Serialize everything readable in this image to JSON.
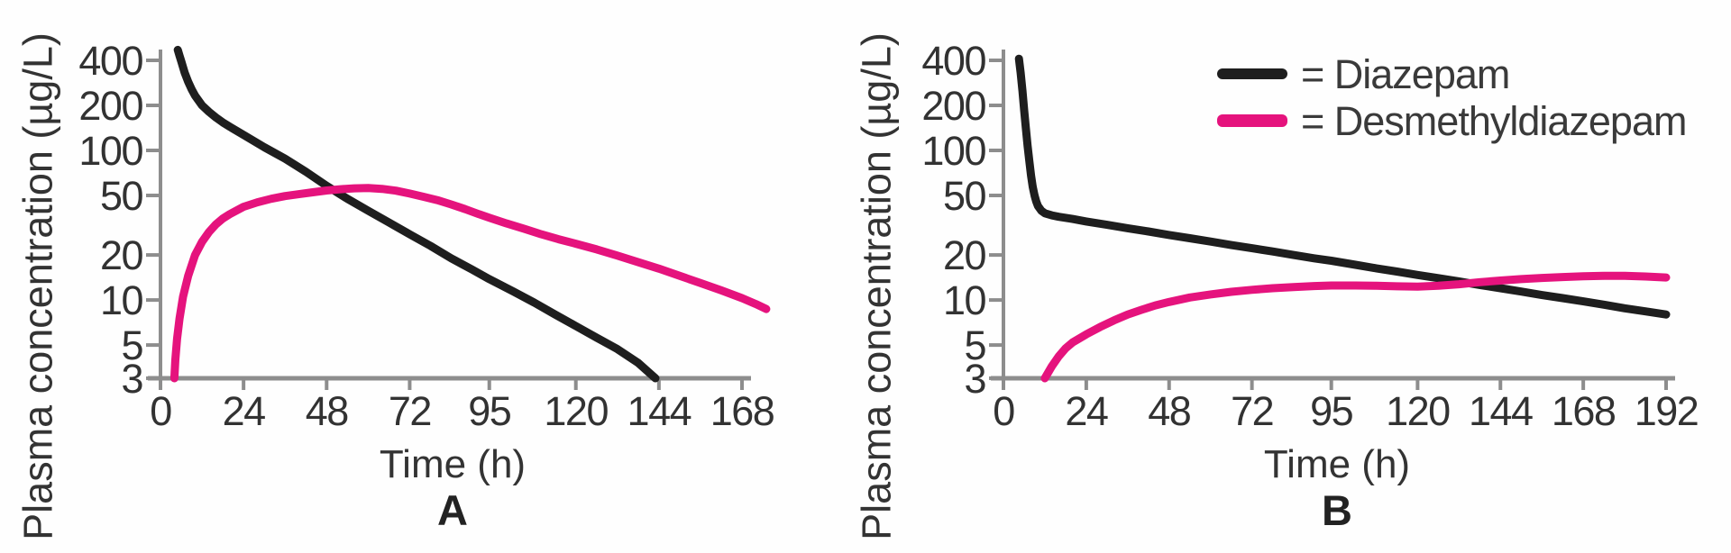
{
  "colors": {
    "diazepam": "#1e1e1e",
    "desmethyldiazepam": "#e5137d",
    "axis": "#8d8d8d",
    "text": "#333333"
  },
  "legend": {
    "items": [
      {
        "series": "diazepam",
        "label": "= Diazepam"
      },
      {
        "series": "desmethyldiazepam",
        "label": "= Desmethyldiazepam"
      }
    ],
    "position": "top-right"
  },
  "chart_data": [
    {
      "panel": "A",
      "caption": "A",
      "type": "line",
      "xlabel": "Time (h)",
      "ylabel": "Plasma concentration (µg/L)",
      "y_scale": "log",
      "ylim": [
        3,
        400
      ],
      "xlim": [
        0,
        175
      ],
      "y_ticks": [
        400,
        200,
        100,
        50,
        20,
        10,
        5,
        3
      ],
      "x_ticks": [
        0,
        24,
        48,
        72,
        95,
        120,
        144,
        168
      ],
      "grid": false,
      "series": [
        {
          "name": "Diazepam",
          "color_key": "diazepam",
          "points": [
            [
              5,
              470
            ],
            [
              5.5,
              430
            ],
            [
              6,
              395
            ],
            [
              7,
              330
            ],
            [
              8,
              288
            ],
            [
              9,
              256
            ],
            [
              10,
              232
            ],
            [
              12,
              200
            ],
            [
              14,
              181
            ],
            [
              16,
              166
            ],
            [
              18,
              154
            ],
            [
              20,
              144
            ],
            [
              24,
              127
            ],
            [
              30,
              105
            ],
            [
              36,
              88
            ],
            [
              42,
              72
            ],
            [
              48,
              58
            ],
            [
              54,
              47.5
            ],
            [
              60,
              39.5
            ],
            [
              66,
              33
            ],
            [
              72,
              27.5
            ],
            [
              78,
              23
            ],
            [
              84,
              19
            ],
            [
              90,
              16
            ],
            [
              95,
              13.8
            ],
            [
              102,
              11.4
            ],
            [
              108,
              9.6
            ],
            [
              114,
              8
            ],
            [
              120,
              6.7
            ],
            [
              126,
              5.6
            ],
            [
              132,
              4.7
            ],
            [
              138,
              3.8
            ],
            [
              143,
              3
            ]
          ]
        },
        {
          "name": "Desmethyldiazepam",
          "color_key": "desmethyldiazepam",
          "points": [
            [
              4,
              3
            ],
            [
              4.3,
              4
            ],
            [
              4.8,
              5.5
            ],
            [
              5.5,
              7.5
            ],
            [
              6.5,
              10.5
            ],
            [
              8,
              14.5
            ],
            [
              10,
              20
            ],
            [
              12,
              24.5
            ],
            [
              14,
              28.5
            ],
            [
              16,
              32
            ],
            [
              18,
              35
            ],
            [
              20,
              37.5
            ],
            [
              24,
              42
            ],
            [
              28,
              45
            ],
            [
              32,
              47.5
            ],
            [
              36,
              49.5
            ],
            [
              40,
              51
            ],
            [
              44,
              52.5
            ],
            [
              48,
              54
            ],
            [
              52,
              55
            ],
            [
              56,
              55.8
            ],
            [
              60,
              56
            ],
            [
              64,
              55.3
            ],
            [
              68,
              53.8
            ],
            [
              72,
              51.5
            ],
            [
              76,
              49
            ],
            [
              80,
              46.5
            ],
            [
              84,
              43.5
            ],
            [
              88,
              40.5
            ],
            [
              92,
              37.5
            ],
            [
              95,
              35.5
            ],
            [
              100,
              32.5
            ],
            [
              105,
              30
            ],
            [
              110,
              27.5
            ],
            [
              115,
              25.5
            ],
            [
              120,
              23.8
            ],
            [
              126,
              21.8
            ],
            [
              132,
              19.8
            ],
            [
              138,
              17.9
            ],
            [
              144,
              16.2
            ],
            [
              150,
              14.5
            ],
            [
              156,
              13
            ],
            [
              162,
              11.6
            ],
            [
              168,
              10.3
            ],
            [
              172,
              9.4
            ],
            [
              175,
              8.7
            ]
          ]
        }
      ]
    },
    {
      "panel": "B",
      "caption": "B",
      "type": "line",
      "xlabel": "Time (h)",
      "ylabel": "Plasma concentration (µg/L)",
      "y_scale": "log",
      "ylim": [
        3,
        400
      ],
      "xlim": [
        0,
        192
      ],
      "y_ticks": [
        400,
        200,
        100,
        50,
        20,
        10,
        5,
        3
      ],
      "x_ticks": [
        0,
        24,
        48,
        72,
        95,
        120,
        144,
        168,
        192
      ],
      "grid": false,
      "series": [
        {
          "name": "Diazepam",
          "color_key": "diazepam",
          "points": [
            [
              4.5,
              410
            ],
            [
              5,
              330
            ],
            [
              5.5,
              250
            ],
            [
              6,
              185
            ],
            [
              6.5,
              140
            ],
            [
              7,
              107
            ],
            [
              7.5,
              85
            ],
            [
              8,
              68
            ],
            [
              8.5,
              57
            ],
            [
              9,
              50
            ],
            [
              9.5,
              45.5
            ],
            [
              10,
              42.5
            ],
            [
              11,
              39.5
            ],
            [
              12,
              38
            ],
            [
              14,
              36.8
            ],
            [
              16,
              36
            ],
            [
              20,
              34.8
            ],
            [
              24,
              33.5
            ],
            [
              30,
              31.8
            ],
            [
              36,
              30.2
            ],
            [
              42,
              28.7
            ],
            [
              48,
              27.2
            ],
            [
              54,
              25.9
            ],
            [
              60,
              24.6
            ],
            [
              66,
              23.3
            ],
            [
              72,
              22.2
            ],
            [
              78,
              21.1
            ],
            [
              84,
              20
            ],
            [
              90,
              19
            ],
            [
              95,
              18.3
            ],
            [
              102,
              17.2
            ],
            [
              108,
              16.3
            ],
            [
              114,
              15.5
            ],
            [
              120,
              14.7
            ],
            [
              126,
              14
            ],
            [
              132,
              13.3
            ],
            [
              138,
              12.6
            ],
            [
              144,
              12
            ],
            [
              150,
              11.4
            ],
            [
              156,
              10.8
            ],
            [
              162,
              10.3
            ],
            [
              168,
              9.8
            ],
            [
              174,
              9.3
            ],
            [
              180,
              8.8
            ],
            [
              186,
              8.4
            ],
            [
              192,
              8
            ]
          ]
        },
        {
          "name": "Desmethyldiazepam",
          "color_key": "desmethyldiazepam",
          "points": [
            [
              12,
              3
            ],
            [
              14,
              3.6
            ],
            [
              16,
              4.2
            ],
            [
              18,
              4.75
            ],
            [
              20,
              5.2
            ],
            [
              24,
              5.9
            ],
            [
              28,
              6.6
            ],
            [
              32,
              7.3
            ],
            [
              36,
              8
            ],
            [
              40,
              8.6
            ],
            [
              44,
              9.2
            ],
            [
              48,
              9.7
            ],
            [
              54,
              10.4
            ],
            [
              60,
              10.9
            ],
            [
              66,
              11.35
            ],
            [
              72,
              11.7
            ],
            [
              78,
              12
            ],
            [
              84,
              12.2
            ],
            [
              90,
              12.4
            ],
            [
              95,
              12.5
            ],
            [
              102,
              12.5
            ],
            [
              108,
              12.45
            ],
            [
              114,
              12.35
            ],
            [
              120,
              12.3
            ],
            [
              126,
              12.45
            ],
            [
              132,
              12.75
            ],
            [
              138,
              13.15
            ],
            [
              144,
              13.5
            ],
            [
              150,
              13.8
            ],
            [
              156,
              14.05
            ],
            [
              162,
              14.25
            ],
            [
              168,
              14.4
            ],
            [
              174,
              14.5
            ],
            [
              180,
              14.5
            ],
            [
              186,
              14.35
            ],
            [
              192,
              14.15
            ]
          ]
        }
      ]
    }
  ]
}
